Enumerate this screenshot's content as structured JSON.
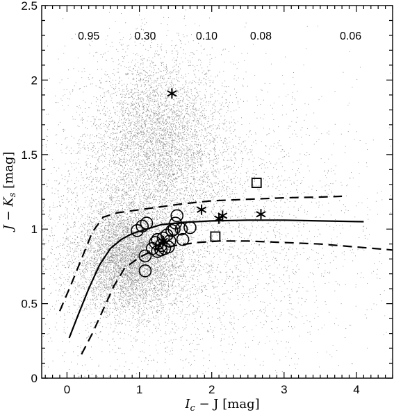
{
  "chart_data": {
    "type": "scatter",
    "title": "",
    "xlabel": {
      "main": "I",
      "sub": "c",
      "rest": " − J [mag]"
    },
    "ylabel": {
      "main": "J − K",
      "sub": "s",
      "rest": " [mag]"
    },
    "xlim": [
      -0.35,
      4.5
    ],
    "ylim": [
      0,
      2.5
    ],
    "xticks": [
      0,
      1,
      2,
      3,
      4
    ],
    "yticks": [
      0,
      0.5,
      1,
      1.5,
      2,
      2.5
    ],
    "xtick_labels": [
      "0",
      "1",
      "2",
      "3",
      "4"
    ],
    "ytick_labels": [
      "0",
      "0.5",
      "1",
      "1.5",
      "2",
      "2.5"
    ],
    "mass_labels": [
      {
        "x": 0.3,
        "text": "0.95"
      },
      {
        "x": 1.08,
        "text": "0.30"
      },
      {
        "x": 1.93,
        "text": "0.10"
      },
      {
        "x": 2.68,
        "text": "0.08"
      },
      {
        "x": 3.92,
        "text": "0.06"
      }
    ],
    "mass_label_y": 2.3,
    "field_clouds": [
      {
        "cx": 1.25,
        "cy": 1.6,
        "sx": 0.45,
        "sy": 0.3,
        "n": 4500
      },
      {
        "cx": 0.85,
        "cy": 0.8,
        "sx": 0.35,
        "sy": 0.18,
        "n": 6000
      },
      {
        "cx": 1.4,
        "cy": 1.0,
        "sx": 1.3,
        "sy": 0.5,
        "n": 7000
      }
    ],
    "field_point_color": "#707070",
    "series": [
      {
        "kind": "solid-line",
        "x": [
          0.03,
          0.15,
          0.3,
          0.45,
          0.6,
          0.75,
          0.9,
          1.1,
          1.3,
          1.6,
          2.0,
          2.5,
          3.0,
          3.5,
          4.1
        ],
        "y": [
          0.27,
          0.42,
          0.6,
          0.76,
          0.87,
          0.93,
          0.97,
          1.0,
          1.03,
          1.045,
          1.055,
          1.06,
          1.06,
          1.055,
          1.05
        ]
      },
      {
        "kind": "dashed-line-upper",
        "x": [
          -0.1,
          0.05,
          0.2,
          0.35,
          0.5,
          0.7,
          1.0,
          1.3,
          1.6,
          2.0,
          2.5,
          3.0,
          3.5,
          3.8
        ],
        "y": [
          0.45,
          0.62,
          0.8,
          0.98,
          1.08,
          1.11,
          1.13,
          1.15,
          1.17,
          1.19,
          1.2,
          1.21,
          1.215,
          1.22
        ]
      },
      {
        "kind": "dashed-line-lower",
        "x": [
          0.2,
          0.35,
          0.5,
          0.65,
          0.8,
          1.0,
          1.2,
          1.5,
          1.8,
          2.1,
          2.5,
          3.0,
          3.5,
          4.0,
          4.5
        ],
        "y": [
          0.16,
          0.3,
          0.46,
          0.62,
          0.74,
          0.81,
          0.86,
          0.89,
          0.91,
          0.92,
          0.92,
          0.91,
          0.9,
          0.88,
          0.86
        ]
      },
      {
        "kind": "open-circles",
        "points": [
          [
            0.97,
            0.99
          ],
          [
            1.04,
            1.02
          ],
          [
            1.1,
            1.04
          ],
          [
            1.08,
            0.82
          ],
          [
            1.08,
            0.72
          ],
          [
            1.18,
            0.87
          ],
          [
            1.22,
            0.91
          ],
          [
            1.25,
            0.85
          ],
          [
            1.3,
            0.89
          ],
          [
            1.33,
            0.94
          ],
          [
            1.35,
            0.87
          ],
          [
            1.38,
            0.96
          ],
          [
            1.42,
            0.92
          ],
          [
            1.45,
            0.99
          ],
          [
            1.48,
            1.0
          ],
          [
            1.5,
            1.04
          ],
          [
            1.52,
            1.09
          ],
          [
            1.58,
            1.0
          ],
          [
            1.6,
            0.93
          ],
          [
            1.7,
            1.01
          ],
          [
            1.25,
            0.93
          ],
          [
            1.3,
            0.86
          ],
          [
            1.4,
            0.88
          ]
        ]
      },
      {
        "kind": "asterisks",
        "points": [
          [
            1.45,
            1.91
          ],
          [
            1.86,
            1.13
          ],
          [
            2.1,
            1.07
          ],
          [
            2.15,
            1.09
          ],
          [
            2.68,
            1.1
          ],
          [
            1.33,
            0.92
          ]
        ]
      },
      {
        "kind": "open-squares",
        "points": [
          [
            2.62,
            1.31
          ],
          [
            2.05,
            0.95
          ]
        ]
      }
    ]
  }
}
